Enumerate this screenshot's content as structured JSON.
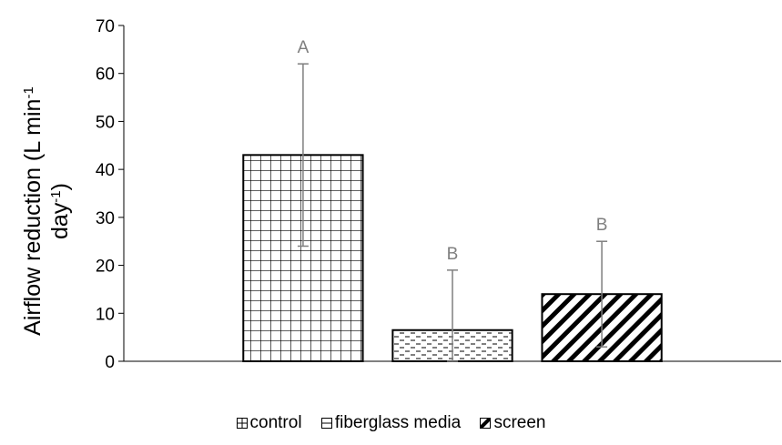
{
  "chart_data": {
    "type": "bar",
    "categories": [
      "control",
      "fiberglass media",
      "screen"
    ],
    "values": [
      43,
      6.5,
      14
    ],
    "error_bars": [
      19,
      12.5,
      11
    ],
    "significance_letters": [
      "A",
      "B",
      "B"
    ],
    "ylabel_line1": "Airflow reduction (L min",
    "ylabel_sup1": "-1",
    "ylabel_line2": "day",
    "ylabel_sup2": "-1",
    "ylabel_close": ")",
    "xlabel": "",
    "ylim": [
      0,
      70
    ],
    "yticks": [
      0,
      10,
      20,
      30,
      40,
      50,
      60,
      70
    ],
    "legend_position": "bottom",
    "patterns": [
      "grid",
      "dashed-horizontal",
      "diagonal-stripes"
    ],
    "bar_stroke_color": "#000000",
    "error_bar_color": "#7f7f7f",
    "letter_color": "#7f7f7f"
  },
  "legend": [
    {
      "label": "control"
    },
    {
      "label": "fiberglass media"
    },
    {
      "label": "screen"
    }
  ]
}
